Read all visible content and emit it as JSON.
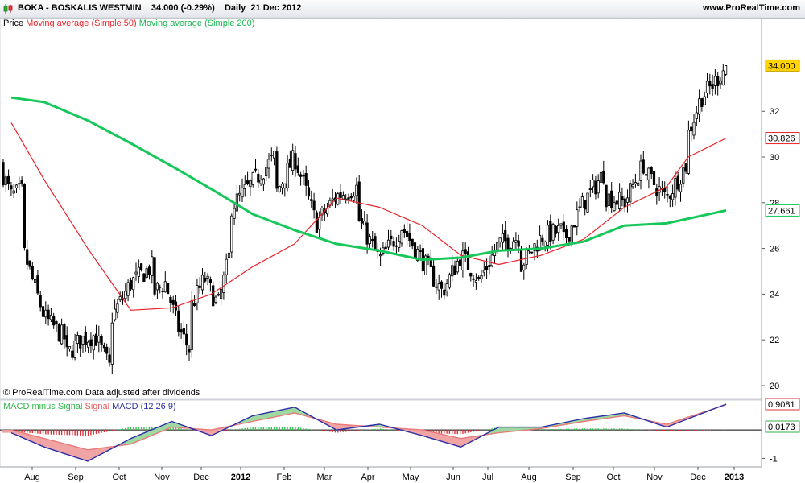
{
  "header": {
    "symbol": "BOKA",
    "name": "BOSKALIS WESTMIN",
    "last_price": "34.000",
    "change": "(-0.29%)",
    "timeframe": "Daily",
    "date": "21 Dec 2012",
    "site": "www.ProRealTime.com"
  },
  "legend": {
    "price_label": "Price",
    "ma50_label": "Moving average (Simple 50)",
    "ma200_label": "Moving average (Simple 200)"
  },
  "credit": {
    "text": "© ProRealTime.com  Data adjusted after dividends"
  },
  "macd_legend": {
    "hist_label": "MACD minus Signal",
    "signal_label": "Signal",
    "macd_label": "MACD (12 26 9)"
  },
  "colors": {
    "background": "#ffffff",
    "candle": "#000000",
    "ma50": "#e8242a",
    "ma200": "#16c75a",
    "macd": "#2b2fa8",
    "signal": "#e97a7a",
    "hist_positive": "#33c24a",
    "hist_negative": "#d9323a",
    "last_price_bg": "#ffd400"
  },
  "chart_data": [
    {
      "type": "candlestick",
      "title": "BOKA - BOSKALIS WESTMIN",
      "x_tick_labels": [
        "Aug",
        "Sep",
        "Oct",
        "Nov",
        "Dec",
        "2012",
        "Feb",
        "Mar",
        "Apr",
        "May",
        "Jun",
        "Jul",
        "Aug",
        "Sep",
        "Oct",
        "Nov",
        "Dec",
        "2013"
      ],
      "y_tick_labels": [
        "20",
        "22",
        "24",
        "26",
        "28",
        "30",
        "32"
      ],
      "ylim": [
        19.4,
        35.6
      ],
      "price_path": [
        [
          "Jul",
          29.6
        ],
        [
          "Jul",
          28.3
        ],
        [
          "Jul",
          28.5
        ],
        [
          "Aug",
          26.0
        ],
        [
          "Aug",
          23.0
        ],
        [
          "Aug",
          22.0
        ],
        [
          "Sep",
          21.3
        ],
        [
          "Sep",
          22.0
        ],
        [
          "Sep",
          22.2
        ],
        [
          "Sep",
          20.8
        ],
        [
          "Oct",
          22.8
        ],
        [
          "Oct",
          24.5
        ],
        [
          "Oct",
          25.2
        ],
        [
          "Nov",
          24.0
        ],
        [
          "Nov",
          24.5
        ],
        [
          "Nov",
          22.5
        ],
        [
          "Nov",
          21.4
        ],
        [
          "Dec",
          23.5
        ],
        [
          "Dec",
          24.7
        ],
        [
          "Dec",
          23.5
        ],
        [
          "Dec",
          26.0
        ],
        [
          "2012",
          27.8
        ],
        [
          "2012",
          30.0
        ],
        [
          "Feb",
          28.3
        ],
        [
          "Feb",
          30.0
        ],
        [
          "Feb",
          27.3
        ],
        [
          "Mar",
          27.0
        ],
        [
          "Mar",
          28.3
        ],
        [
          "Mar",
          28.7
        ],
        [
          "Apr",
          27.3
        ],
        [
          "Apr",
          25.5
        ],
        [
          "Apr",
          26.8
        ],
        [
          "May",
          27.0
        ],
        [
          "May",
          25.5
        ],
        [
          "May",
          24.0
        ],
        [
          "Jun",
          24.2
        ],
        [
          "Jun",
          25.7
        ],
        [
          "Jun",
          24.7
        ],
        [
          "Jul",
          24.5
        ],
        [
          "Jul",
          26.2
        ],
        [
          "Jul",
          26.5
        ],
        [
          "Aug",
          25.2
        ],
        [
          "Aug",
          26.5
        ],
        [
          "Aug",
          26.8
        ],
        [
          "Sep",
          26.3
        ],
        [
          "Sep",
          28.0
        ],
        [
          "Sep",
          29.3
        ],
        [
          "Oct",
          28.3
        ],
        [
          "Oct",
          28.0
        ],
        [
          "Oct",
          29.8
        ],
        [
          "Nov",
          29.3
        ],
        [
          "Nov",
          28.2
        ],
        [
          "Nov",
          29.8
        ],
        [
          "Dec",
          31.0
        ],
        [
          "Dec",
          32.6
        ],
        [
          "Dec",
          33.2
        ],
        [
          "Dec",
          34.0
        ]
      ],
      "last_value": 34.0,
      "series": [
        {
          "name": "Moving average (Simple 50)",
          "last_value": 30.826,
          "values": [
            [
              "Jul",
              31.5
            ],
            [
              "Aug",
              29.0
            ],
            [
              "Sep",
              26.0
            ],
            [
              "Oct",
              23.3
            ],
            [
              "Nov",
              23.4
            ],
            [
              "Dec",
              24.0
            ],
            [
              "2012",
              25.2
            ],
            [
              "Feb",
              26.2
            ],
            [
              "Mar",
              28.2
            ],
            [
              "Apr",
              27.8
            ],
            [
              "May",
              27.0
            ],
            [
              "Jun",
              25.7
            ],
            [
              "Jul",
              25.3
            ],
            [
              "Aug",
              25.7
            ],
            [
              "Sep",
              26.4
            ],
            [
              "Oct",
              27.8
            ],
            [
              "Nov",
              28.7
            ],
            [
              "Dec",
              30.0
            ],
            [
              "Dec",
              30.826
            ]
          ]
        },
        {
          "name": "Moving average (Simple 200)",
          "last_value": 27.661,
          "values": [
            [
              "Jul",
              32.6
            ],
            [
              "Aug",
              32.4
            ],
            [
              "Sep",
              31.6
            ],
            [
              "Oct",
              30.6
            ],
            [
              "Nov",
              29.6
            ],
            [
              "Dec",
              28.6
            ],
            [
              "2012",
              27.5
            ],
            [
              "Feb",
              26.8
            ],
            [
              "Mar",
              26.2
            ],
            [
              "Apr",
              25.9
            ],
            [
              "May",
              25.5
            ],
            [
              "Jun",
              25.6
            ],
            [
              "Jul",
              25.9
            ],
            [
              "Aug",
              26.0
            ],
            [
              "Sep",
              26.3
            ],
            [
              "Oct",
              27.0
            ],
            [
              "Nov",
              27.1
            ],
            [
              "Dec",
              27.661
            ]
          ]
        }
      ]
    },
    {
      "type": "line",
      "title": "MACD (12 26 9)",
      "y_tick_labels": [
        "-1"
      ],
      "ylim": [
        -1.3,
        1.05
      ],
      "series": [
        {
          "name": "MACD",
          "last_value": 0.9081,
          "values": [
            [
              "Jul",
              -0.1
            ],
            [
              "Aug",
              -0.6
            ],
            [
              "Sep",
              -1.1
            ],
            [
              "Oct",
              -0.3
            ],
            [
              "Nov",
              0.3
            ],
            [
              "Dec",
              -0.2
            ],
            [
              "2012",
              0.5
            ],
            [
              "Feb",
              0.8
            ],
            [
              "Mar",
              0.0
            ],
            [
              "Apr",
              0.2
            ],
            [
              "May",
              -0.2
            ],
            [
              "Jun",
              -0.6
            ],
            [
              "Jul",
              0.1
            ],
            [
              "Aug",
              0.1
            ],
            [
              "Sep",
              0.4
            ],
            [
              "Oct",
              0.6
            ],
            [
              "Nov",
              0.1
            ],
            [
              "Dec",
              0.9081
            ]
          ]
        },
        {
          "name": "Signal",
          "values": [
            [
              "Jul",
              0.0
            ],
            [
              "Aug",
              -0.3
            ],
            [
              "Sep",
              -0.7
            ],
            [
              "Oct",
              -0.5
            ],
            [
              "Nov",
              0.1
            ],
            [
              "Dec",
              0.0
            ],
            [
              "2012",
              0.3
            ],
            [
              "Feb",
              0.6
            ],
            [
              "Mar",
              0.2
            ],
            [
              "Apr",
              0.1
            ],
            [
              "May",
              0.0
            ],
            [
              "Jun",
              -0.3
            ],
            [
              "Jul",
              -0.1
            ],
            [
              "Aug",
              0.05
            ],
            [
              "Sep",
              0.3
            ],
            [
              "Oct",
              0.5
            ],
            [
              "Nov",
              0.2
            ],
            [
              "Dec",
              0.89
            ]
          ]
        },
        {
          "name": "MACD minus Signal",
          "last_value": 0.0173
        }
      ]
    }
  ]
}
